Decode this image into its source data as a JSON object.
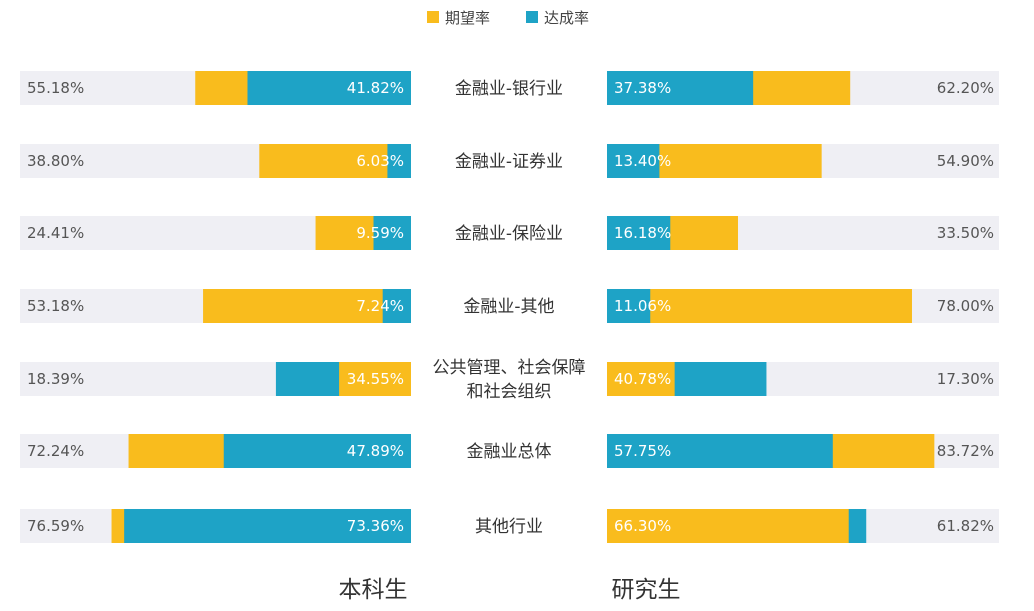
{
  "chart_data": {
    "type": "bar",
    "legend": [
      {
        "name": "期望率",
        "color": "#f9bc1d"
      },
      {
        "name": "达成率",
        "color": "#1ea3c6"
      }
    ],
    "colors": {
      "expected": "#f9bc1d",
      "achieved": "#1ea3c6",
      "track": "#efeff4"
    },
    "categories": [
      [
        "金融业-银行业"
      ],
      [
        "金融业-证券业"
      ],
      [
        "金融业-保险业"
      ],
      [
        "金融业-其他"
      ],
      [
        "公共管理、社会保障",
        "和社会组织"
      ],
      [
        "金融业总体"
      ],
      [
        "其他行业"
      ]
    ],
    "groups": [
      {
        "name": "本科生",
        "direction": "leftward",
        "xlim": [
          0,
          100
        ],
        "expected": [
          55.18,
          38.8,
          24.41,
          53.18,
          18.39,
          72.24,
          76.59
        ],
        "achieved": [
          41.82,
          6.03,
          9.59,
          7.24,
          34.55,
          47.89,
          73.36
        ],
        "expected_labels": [
          "55.18%",
          "38.80%",
          "24.41%",
          "53.18%",
          "18.39%",
          "72.24%",
          "76.59%"
        ],
        "achieved_labels": [
          "41.82%",
          "6.03%",
          "9.59%",
          "7.24%",
          "34.55%",
          "47.89%",
          "73.36%"
        ]
      },
      {
        "name": "研究生",
        "direction": "rightward",
        "xlim": [
          0,
          100
        ],
        "expected": [
          62.2,
          54.9,
          33.5,
          78.0,
          17.3,
          83.72,
          61.82
        ],
        "achieved": [
          37.38,
          13.4,
          16.18,
          11.06,
          40.78,
          57.75,
          66.3
        ],
        "expected_labels": [
          "62.20%",
          "54.90%",
          "33.50%",
          "78.00%",
          "17.30%",
          "83.72%",
          "61.82%"
        ],
        "achieved_labels": [
          "37.38%",
          "13.40%",
          "16.18%",
          "11.06%",
          "40.78%",
          "57.75%",
          "66.30%"
        ]
      }
    ]
  }
}
